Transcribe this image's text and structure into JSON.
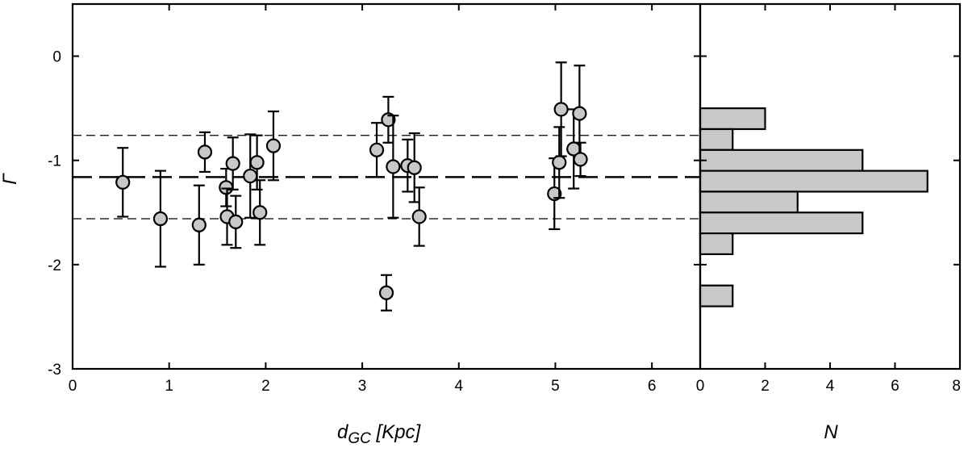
{
  "chart_data": [
    {
      "type": "scatter",
      "title": "",
      "xlabel_main": "d",
      "xlabel_sub": "GC",
      "xlabel_rest": " [Kpc]",
      "ylabel": "Γ",
      "xlim": [
        0,
        6.5
      ],
      "ylim": [
        -3,
        0.5
      ],
      "xticks": [
        0,
        1,
        2,
        3,
        4,
        5,
        6
      ],
      "yticks": [
        0,
        -1,
        -2,
        -3
      ],
      "reference_lines": {
        "mean": -1.16,
        "lower": -1.56,
        "upper": -0.76,
        "style_mean": "long-dash",
        "style_bounds": "short-dash"
      },
      "marker_fill": "#c8c8c8",
      "points": [
        {
          "x": 0.52,
          "y": -1.21,
          "err_lo": 0.33,
          "err_hi": 0.33
        },
        {
          "x": 0.91,
          "y": -1.56,
          "err_lo": 0.46,
          "err_hi": 0.46
        },
        {
          "x": 1.31,
          "y": -1.62,
          "err_lo": 0.38,
          "err_hi": 0.38
        },
        {
          "x": 1.37,
          "y": -0.92,
          "err_lo": 0.19,
          "err_hi": 0.19
        },
        {
          "x": 1.59,
          "y": -1.26,
          "err_lo": 0.18,
          "err_hi": 0.18
        },
        {
          "x": 1.6,
          "y": -1.54,
          "err_lo": 0.27,
          "err_hi": 0.27
        },
        {
          "x": 1.66,
          "y": -1.03,
          "err_lo": 0.25,
          "err_hi": 0.25
        },
        {
          "x": 1.69,
          "y": -1.59,
          "err_lo": 0.25,
          "err_hi": 0.25
        },
        {
          "x": 1.84,
          "y": -1.15,
          "err_lo": 0.4,
          "err_hi": 0.4
        },
        {
          "x": 1.91,
          "y": -1.02,
          "err_lo": 0.26,
          "err_hi": 0.26
        },
        {
          "x": 1.94,
          "y": -1.5,
          "err_lo": 0.31,
          "err_hi": 0.31
        },
        {
          "x": 2.08,
          "y": -0.86,
          "err_lo": 0.33,
          "err_hi": 0.33
        },
        {
          "x": 3.15,
          "y": -0.9,
          "err_lo": 0.26,
          "err_hi": 0.26
        },
        {
          "x": 3.25,
          "y": -2.27,
          "err_lo": 0.17,
          "err_hi": 0.17
        },
        {
          "x": 3.27,
          "y": -0.61,
          "err_lo": 0.22,
          "err_hi": 0.22
        },
        {
          "x": 3.32,
          "y": -1.06,
          "err_lo": 0.49,
          "err_hi": 0.49
        },
        {
          "x": 3.47,
          "y": -1.05,
          "err_lo": 0.25,
          "err_hi": 0.25
        },
        {
          "x": 3.54,
          "y": -1.07,
          "err_lo": 0.33,
          "err_hi": 0.33
        },
        {
          "x": 3.59,
          "y": -1.54,
          "err_lo": 0.28,
          "err_hi": 0.28
        },
        {
          "x": 4.99,
          "y": -1.32,
          "err_lo": 0.34,
          "err_hi": 0.34
        },
        {
          "x": 5.04,
          "y": -1.02,
          "err_lo": 0.34,
          "err_hi": 0.34
        },
        {
          "x": 5.06,
          "y": -0.51,
          "err_lo": 0.45,
          "err_hi": 0.45
        },
        {
          "x": 5.19,
          "y": -0.89,
          "err_lo": 0.38,
          "err_hi": 0.38
        },
        {
          "x": 5.25,
          "y": -0.55,
          "err_lo": 0.46,
          "err_hi": 0.46
        },
        {
          "x": 5.26,
          "y": -0.99,
          "err_lo": 0.16,
          "err_hi": 0.16
        }
      ]
    },
    {
      "type": "bar",
      "orientation": "horizontal",
      "xlabel": "N",
      "xlim": [
        0,
        8
      ],
      "xticks": [
        0,
        2,
        4,
        6,
        8
      ],
      "ylim": [
        -3,
        0.5
      ],
      "bar_fill": "#c8c8c8",
      "bin_width": 0.2,
      "bins": [
        {
          "y_center": -0.6,
          "count": 2
        },
        {
          "y_center": -0.8,
          "count": 1
        },
        {
          "y_center": -1.0,
          "count": 5
        },
        {
          "y_center": -1.2,
          "count": 7
        },
        {
          "y_center": -1.4,
          "count": 3
        },
        {
          "y_center": -1.6,
          "count": 5
        },
        {
          "y_center": -1.8,
          "count": 1
        },
        {
          "y_center": -2.3,
          "count": 1
        }
      ]
    }
  ]
}
